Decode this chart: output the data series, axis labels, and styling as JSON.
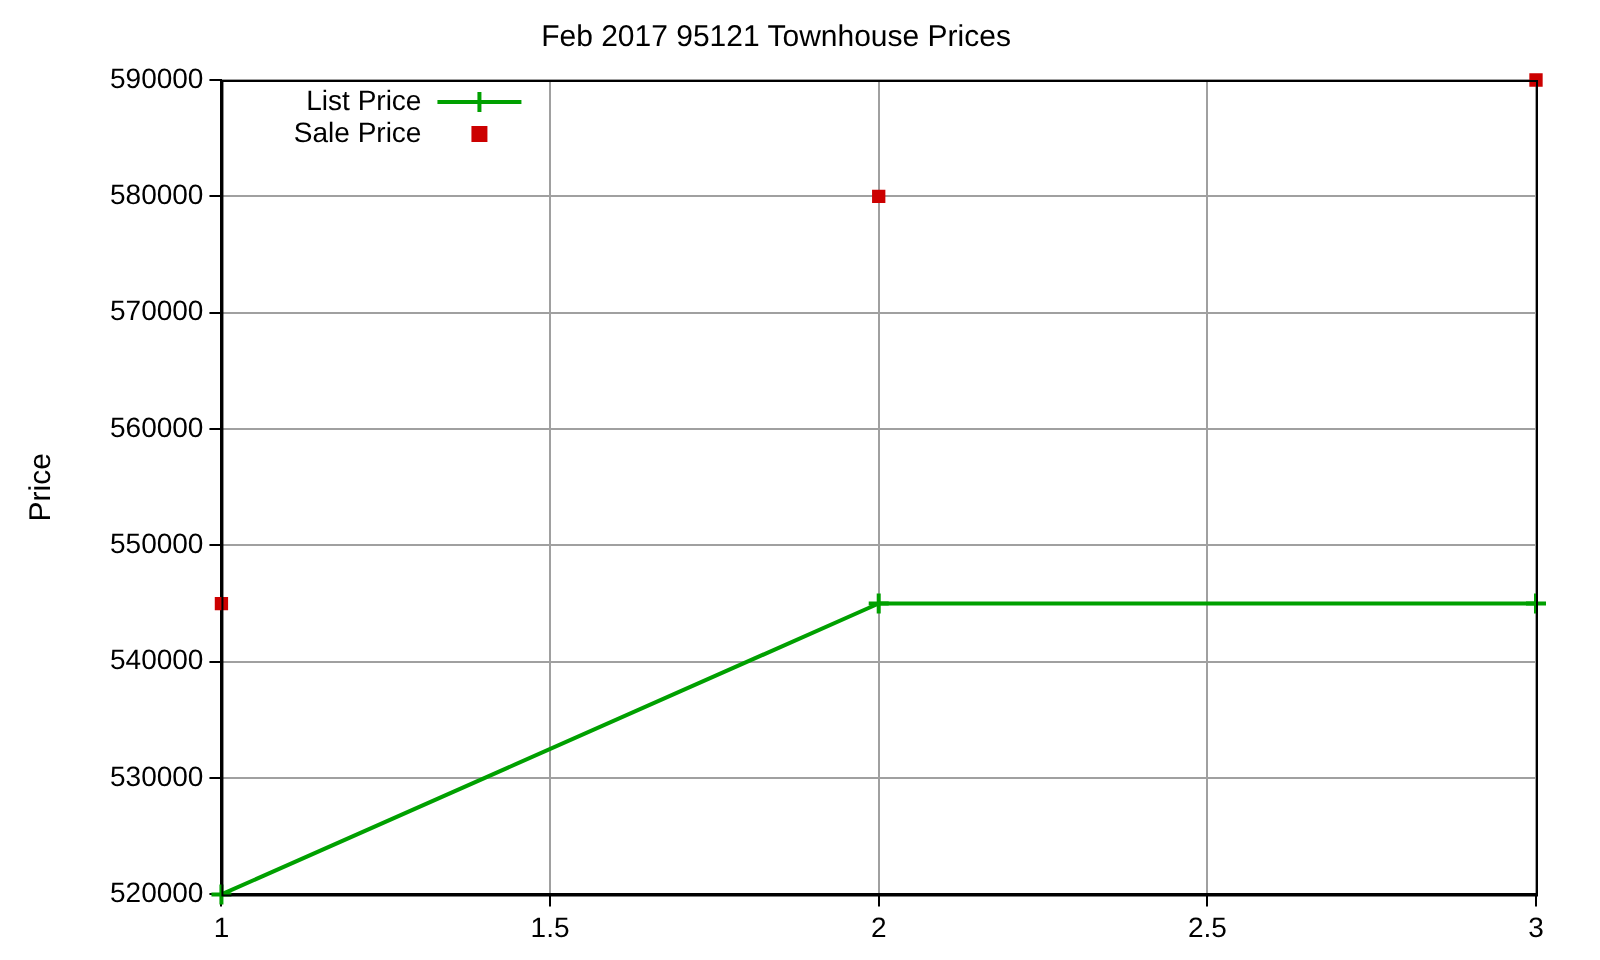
{
  "chart_data": {
    "type": "line",
    "title": "Feb 2017 95121 Townhouse Prices",
    "ylabel": "Price",
    "x": [
      1,
      2,
      3
    ],
    "series": [
      {
        "name": "List Price",
        "color": "#00a000",
        "marker": "cross",
        "values": [
          520000,
          545000,
          545000
        ]
      },
      {
        "name": "Sale Price",
        "type": "scatter",
        "color": "#cc0000",
        "marker": "square",
        "values": [
          545000,
          580000,
          590000
        ]
      }
    ],
    "xlim": [
      1,
      3
    ],
    "xticks": [
      1,
      1.5,
      2,
      2.5,
      3
    ],
    "ylim": [
      520000,
      590000
    ],
    "yticks": [
      520000,
      530000,
      540000,
      550000,
      560000,
      570000,
      580000,
      590000
    ],
    "grid": true,
    "legend": "top left"
  }
}
